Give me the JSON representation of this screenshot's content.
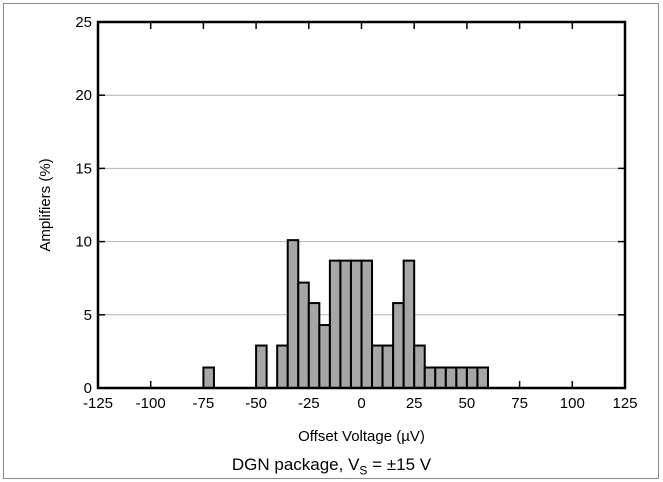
{
  "chart_data": {
    "type": "bar",
    "subtype": "histogram",
    "xlabel": "Offset Voltage (µV)",
    "ylabel": "Amplifiers (%)",
    "xlim": [
      -125,
      125
    ],
    "ylim": [
      0,
      25
    ],
    "xticks": [
      "-125",
      "-100",
      "-75",
      "-50",
      "-25",
      "0",
      "25",
      "50",
      "75",
      "100",
      "125"
    ],
    "xtick_values": [
      -125,
      -100,
      -75,
      -50,
      -25,
      0,
      25,
      50,
      75,
      100,
      125
    ],
    "yticks": [
      "0",
      "5",
      "10",
      "15",
      "20",
      "25"
    ],
    "ytick_values": [
      0,
      5,
      10,
      15,
      20,
      25
    ],
    "bin_width": 5,
    "bins": [
      {
        "x": -72.5,
        "value": 1.4
      },
      {
        "x": -47.5,
        "value": 2.9
      },
      {
        "x": -37.5,
        "value": 2.9
      },
      {
        "x": -32.5,
        "value": 10.1
      },
      {
        "x": -27.5,
        "value": 7.2
      },
      {
        "x": -22.5,
        "value": 5.8
      },
      {
        "x": -17.5,
        "value": 4.3
      },
      {
        "x": -12.5,
        "value": 8.7
      },
      {
        "x": -7.5,
        "value": 8.7
      },
      {
        "x": -2.5,
        "value": 8.7
      },
      {
        "x": 2.5,
        "value": 8.7
      },
      {
        "x": 7.5,
        "value": 2.9
      },
      {
        "x": 12.5,
        "value": 2.9
      },
      {
        "x": 17.5,
        "value": 5.8
      },
      {
        "x": 22.5,
        "value": 8.7
      },
      {
        "x": 27.5,
        "value": 2.9
      },
      {
        "x": 32.5,
        "value": 1.4
      },
      {
        "x": 37.5,
        "value": 1.4
      },
      {
        "x": 42.5,
        "value": 1.4
      },
      {
        "x": 47.5,
        "value": 1.4
      },
      {
        "x": 52.5,
        "value": 1.4
      },
      {
        "x": 57.5,
        "value": 1.4
      }
    ],
    "grid": "horizontal",
    "bar_color": "#a6a6a6",
    "bar_edge_color": "#000000",
    "grid_color": "#b4b4b4"
  },
  "caption": {
    "main": "DGN package, V",
    "sub": "S",
    "tail": " = ±15 V"
  }
}
